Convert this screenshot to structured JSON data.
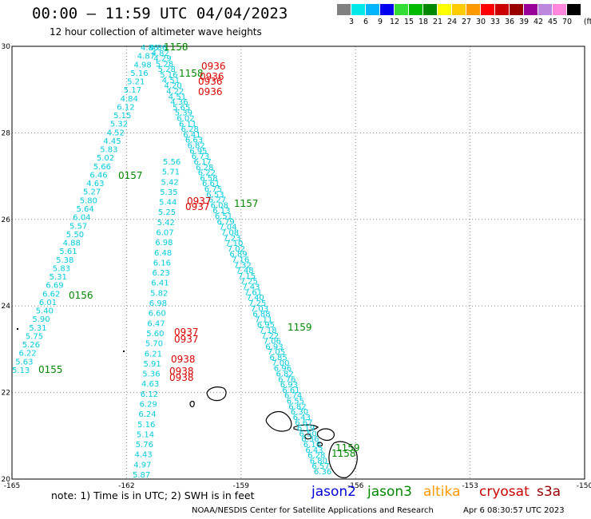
{
  "header": {
    "title": "00:00 — 11:59 UTC 04/04/2023",
    "subtitle": "12 hour collection of altimeter wave heights"
  },
  "color_scale": {
    "unit": "(ft)",
    "bins": [
      {
        "label": "3",
        "color": "#808080"
      },
      {
        "label": "6",
        "color": "#00e8e8"
      },
      {
        "label": "9",
        "color": "#00b4ff"
      },
      {
        "label": "12",
        "color": "#0000ee"
      },
      {
        "label": "15",
        "color": "#33dd33"
      },
      {
        "label": "18",
        "color": "#00bb00"
      },
      {
        "label": "21",
        "color": "#008800"
      },
      {
        "label": "24",
        "color": "#ffff00"
      },
      {
        "label": "27",
        "color": "#ffcc00"
      },
      {
        "label": "30",
        "color": "#ff9900"
      },
      {
        "label": "33",
        "color": "#ff0000"
      },
      {
        "label": "36",
        "color": "#cc0000"
      },
      {
        "label": "39",
        "color": "#990000"
      },
      {
        "label": "42",
        "color": "#990099"
      },
      {
        "label": "45",
        "color": "#bb88dd"
      },
      {
        "label": "70",
        "color": "#ff88dd"
      },
      {
        "label": "",
        "color": "#000000"
      }
    ]
  },
  "map": {
    "lon_range": [
      -165,
      -150
    ],
    "lat_range": [
      20,
      30
    ],
    "x_ticks": [
      "-165",
      "-162",
      "-159",
      "-156",
      "-153",
      "-150"
    ],
    "y_ticks": [
      "30",
      "28",
      "26",
      "24",
      "22",
      "20"
    ]
  },
  "tracks": {
    "track_a": [
      "5.13",
      "5.63",
      "6.22",
      "5.26",
      "5.75",
      "5.31",
      "5.90",
      "5.40",
      "6.01",
      "6.62",
      "6.69",
      "5.31",
      "5.83",
      "5.38",
      "5.61",
      "4.88",
      "5.50",
      "5.57",
      "6.04",
      "5.64",
      "5.80",
      "5.27",
      "4.63",
      "6.46",
      "5.66",
      "5.02",
      "5.83",
      "4.45",
      "4.52",
      "5.32",
      "5.15",
      "6.12",
      "4.84",
      "5.17",
      "5.21",
      "5.16",
      "4.98",
      "4.87",
      "4.86"
    ],
    "track_b": [
      "5.87",
      "4.97",
      "4.43",
      "5.76",
      "5.14",
      "5.16",
      "6.24",
      "6.29",
      "6.12",
      "4.63",
      "5.36",
      "5.91",
      "6.21",
      "5.70",
      "5.60",
      "6.47",
      "6.60",
      "6.98",
      "5.82",
      "6.41",
      "6.23",
      "6.16",
      "6.48",
      "6.98",
      "6.07",
      "5.42",
      "5.25",
      "5.44",
      "5.35",
      "5.42",
      "5.71",
      "5.56"
    ],
    "track_c": [
      "4.86",
      "4.82",
      "4.29",
      "5.28",
      "5.28",
      "5.16",
      "4.51",
      "4.20",
      "4.22",
      "4.51",
      "4.36",
      "5.65",
      "5.39",
      "6.02",
      "6.11",
      "6.28",
      "6.41",
      "6.63",
      "6.82",
      "6.95",
      "6.73",
      "6.17",
      "6.28",
      "6.22",
      "6.58",
      "6.61",
      "6.75",
      "6.53",
      "6.27",
      "6.08",
      "6.13",
      "6.51",
      "6.79",
      "7.04",
      "7.08",
      "7.23",
      "7.10",
      "7.02",
      "6.89",
      "7.16",
      "7.32",
      "7.48",
      "7.15",
      "7.25",
      "7.43",
      "7.61",
      "7.40",
      "7.25",
      "7.03",
      "6.88",
      "7.11",
      "6.95",
      "7.18",
      "7.22",
      "7.06",
      "6.93",
      "7.05",
      "6.85",
      "7.00",
      "6.96",
      "6.82",
      "6.76",
      "6.93",
      "6.61",
      "6.74",
      "6.55",
      "6.82",
      "6.30",
      "6.43",
      "6.67",
      "6.19",
      "6.50",
      "6.36",
      "6.16",
      "6.43",
      "6.28",
      "6.80",
      "6.57",
      "6.36"
    ],
    "jason3_times": [
      "0155",
      "0156",
      "0157",
      "1158",
      "1158",
      "1159",
      "1157",
      "1159",
      "1158"
    ],
    "s3a_times": [
      "0936",
      "0936",
      "0936",
      "0936",
      "0937",
      "0937",
      "0937",
      "0937",
      "0938",
      "0938",
      "0938"
    ]
  },
  "footer": {
    "note": "note:  1) Time is in UTC;  2) SWH is in feet",
    "legend": [
      {
        "label": "jason2",
        "color": "#0000dd"
      },
      {
        "label": "jason3",
        "color": "#008800"
      },
      {
        "label": "altika",
        "color": "#ff9900"
      },
      {
        "label": "cryosat",
        "color": "#cc0000"
      },
      {
        "label": "s3a",
        "color": "#990000"
      }
    ],
    "credit": "NOAA/NESDIS Center for Satellite Applications and Research",
    "date": "Apr  6 08:30:57 UTC 2023"
  }
}
